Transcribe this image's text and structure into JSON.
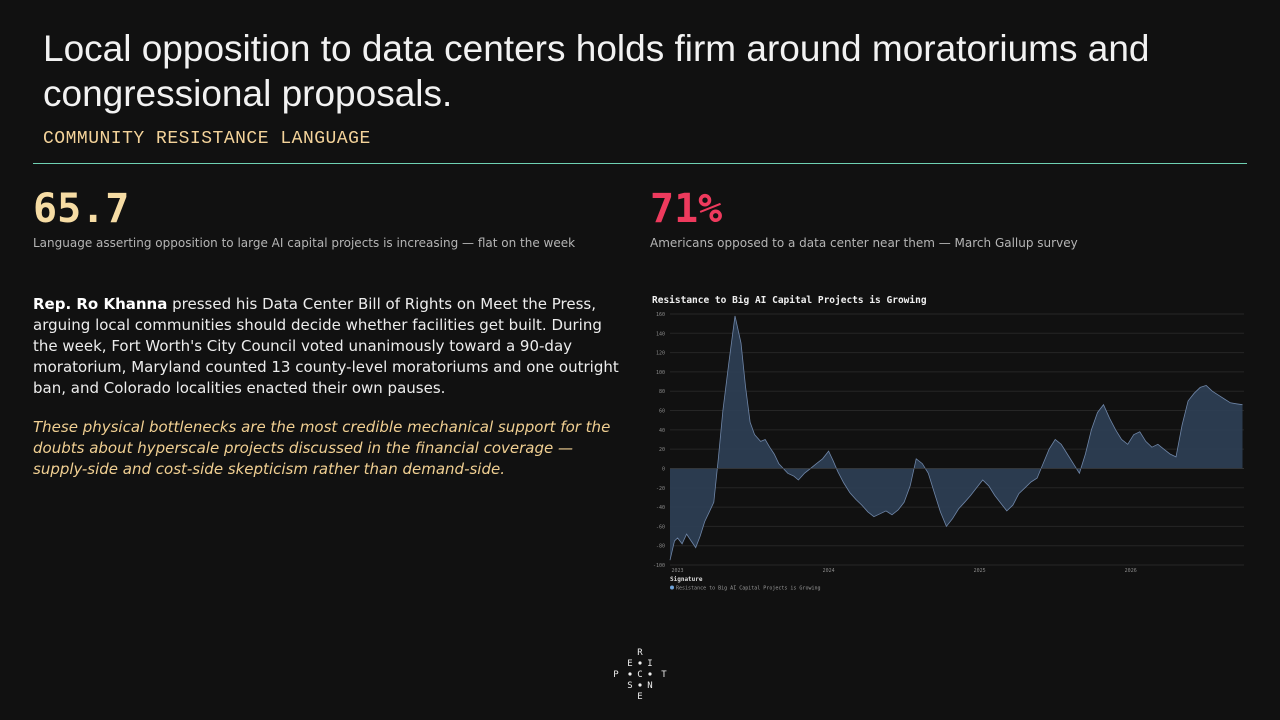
{
  "header": {
    "title": "Local opposition to data centers holds firm around moratoriums and congressional proposals.",
    "kicker": "COMMUNITY RESISTANCE LANGUAGE"
  },
  "stats": {
    "left": {
      "value": "65.7",
      "desc": "Language asserting opposition to large AI capital projects is increasing — flat on the week"
    },
    "right": {
      "value": "71%",
      "desc": "Americans opposed to a data center near them — March Gallup survey"
    }
  },
  "body": {
    "lead_name": "Rep. Ro Khanna",
    "lead_rest": " pressed his Data Center Bill of Rights on Meet the Press, arguing local communities should decide whether facilities get built. During the week, Fort Worth's City Council voted unanimously toward a 90-day moratorium, Maryland counted 13 county-level moratoriums and one outright ban, and Colorado localities enacted their own pauses.",
    "italic": "These physical bottlenecks are the most credible mechanical support for the doubts about hyperscale projects discussed in the financial coverage — supply-side and cost-side skepticism rather than demand-side."
  },
  "logo": {
    "letters": [
      "R",
      "E",
      "I",
      "P",
      "C",
      "T",
      "S",
      "N",
      "E"
    ]
  },
  "colors": {
    "accent_rule": "#6fd1b3",
    "stat_left": "#f6dca4",
    "stat_right": "#ee3a5d",
    "series_fill": "#2e3f55",
    "series_line": "#6f86a8"
  },
  "chart_data": {
    "type": "area",
    "title": "Resistance to Big AI Capital Projects is Growing",
    "xlabel": "",
    "ylabel": "",
    "ylim": [
      -100,
      160
    ],
    "yticks": [
      -100,
      -80,
      -60,
      -40,
      -20,
      0,
      20,
      40,
      60,
      80,
      100,
      120,
      140,
      160
    ],
    "xlim": [
      2022.95,
      2026.75
    ],
    "xticks": [
      2023,
      2024,
      2025,
      2026
    ],
    "grid": true,
    "legend": {
      "title": "Signature",
      "placement": "bottom-left",
      "entries": [
        "Resistance to Big AI Capital Projects is Growing"
      ]
    },
    "series": [
      {
        "name": "Resistance to Big AI Capital Projects is Growing",
        "x": [
          2022.95,
          2022.98,
          2023.0,
          2023.03,
          2023.06,
          2023.09,
          2023.12,
          2023.15,
          2023.18,
          2023.21,
          2023.24,
          2023.27,
          2023.3,
          2023.34,
          2023.38,
          2023.42,
          2023.45,
          2023.48,
          2023.51,
          2023.55,
          2023.58,
          2023.61,
          2023.64,
          2023.67,
          2023.7,
          2023.73,
          2023.77,
          2023.8,
          2023.84,
          2023.88,
          2023.92,
          2023.96,
          2024.0,
          2024.03,
          2024.06,
          2024.1,
          2024.14,
          2024.18,
          2024.22,
          2024.26,
          2024.3,
          2024.34,
          2024.38,
          2024.42,
          2024.46,
          2024.5,
          2024.54,
          2024.58,
          2024.62,
          2024.66,
          2024.7,
          2024.74,
          2024.78,
          2024.82,
          2024.86,
          2024.9,
          2024.94,
          2024.98,
          2025.02,
          2025.06,
          2025.1,
          2025.14,
          2025.18,
          2025.22,
          2025.26,
          2025.3,
          2025.34,
          2025.38,
          2025.42,
          2025.46,
          2025.5,
          2025.54,
          2025.58,
          2025.62,
          2025.66,
          2025.7,
          2025.74,
          2025.78,
          2025.82,
          2025.86,
          2025.9,
          2025.94,
          2025.98,
          2026.02,
          2026.06,
          2026.1,
          2026.14,
          2026.18,
          2026.22,
          2026.26,
          2026.3,
          2026.34,
          2026.38,
          2026.42,
          2026.46,
          2026.5,
          2026.54,
          2026.58,
          2026.62,
          2026.66,
          2026.7,
          2026.74
        ],
        "y": [
          -95,
          -75,
          -72,
          -78,
          -68,
          -75,
          -82,
          -70,
          -55,
          -45,
          -35,
          10,
          60,
          110,
          158,
          130,
          85,
          48,
          35,
          28,
          30,
          22,
          15,
          5,
          0,
          -5,
          -8,
          -12,
          -5,
          0,
          5,
          10,
          18,
          8,
          -3,
          -15,
          -25,
          -32,
          -38,
          -45,
          -50,
          -47,
          -44,
          -48,
          -43,
          -35,
          -18,
          10,
          5,
          -5,
          -25,
          -45,
          -60,
          -52,
          -42,
          -35,
          -28,
          -20,
          -12,
          -18,
          -28,
          -36,
          -44,
          -38,
          -26,
          -20,
          -14,
          -10,
          5,
          20,
          30,
          25,
          15,
          5,
          -5,
          15,
          40,
          58,
          66,
          52,
          40,
          30,
          25,
          35,
          38,
          28,
          22,
          25,
          20,
          15,
          12,
          45,
          70,
          78,
          84,
          86,
          80,
          76,
          72,
          68,
          67,
          66
        ]
      }
    ]
  }
}
